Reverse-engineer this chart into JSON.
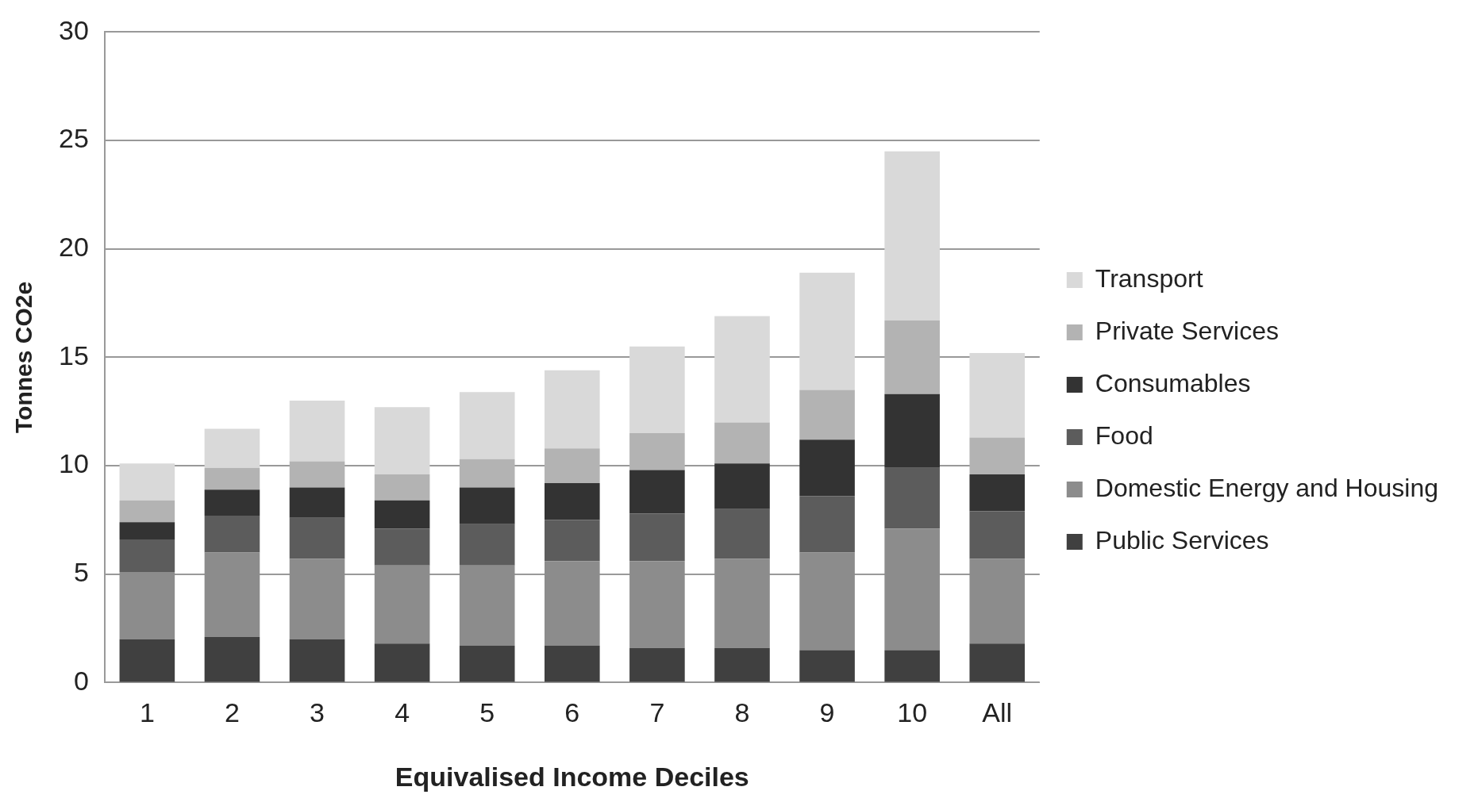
{
  "chart_data": {
    "type": "bar",
    "stacked": true,
    "xlabel": "Equivalised Income Deciles",
    "ylabel": "Tonnes CO2e",
    "categories": [
      "1",
      "2",
      "3",
      "4",
      "5",
      "6",
      "7",
      "8",
      "9",
      "10",
      "All"
    ],
    "series": [
      {
        "name": "Public Services",
        "color": "#404040",
        "values": [
          2.0,
          2.1,
          2.0,
          1.8,
          1.7,
          1.7,
          1.6,
          1.6,
          1.5,
          1.5,
          1.8
        ]
      },
      {
        "name": "Domestic Energy and Housing",
        "color": "#8c8c8c",
        "values": [
          3.1,
          3.9,
          3.7,
          3.6,
          3.7,
          3.9,
          4.0,
          4.1,
          4.5,
          5.6,
          3.9
        ]
      },
      {
        "name": "Food",
        "color": "#5c5c5c",
        "values": [
          1.5,
          1.7,
          1.9,
          1.7,
          1.9,
          1.9,
          2.2,
          2.3,
          2.6,
          2.8,
          2.2
        ]
      },
      {
        "name": "Consumables",
        "color": "#333333",
        "values": [
          0.8,
          1.2,
          1.4,
          1.3,
          1.7,
          1.7,
          2.0,
          2.1,
          2.6,
          3.4,
          1.7
        ]
      },
      {
        "name": "Private Services",
        "color": "#b3b3b3",
        "values": [
          1.0,
          1.0,
          1.2,
          1.2,
          1.3,
          1.6,
          1.7,
          1.9,
          2.3,
          3.4,
          1.7
        ]
      },
      {
        "name": "Transport",
        "color": "#d9d9d9",
        "values": [
          1.7,
          1.8,
          2.8,
          3.1,
          3.1,
          3.6,
          4.0,
          4.9,
          5.4,
          7.8,
          3.9
        ]
      }
    ],
    "ylim": [
      0,
      30
    ],
    "yticks": [
      0,
      5,
      10,
      15,
      20,
      25,
      30
    ],
    "grid": "y",
    "legend": "right"
  }
}
